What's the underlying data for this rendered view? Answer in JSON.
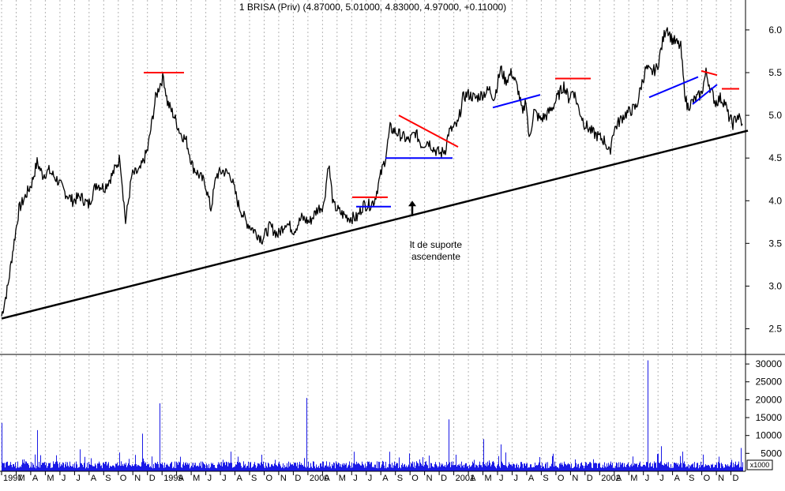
{
  "chart_data": {
    "type": "line",
    "title": "1 BRISA (Priv) (4.87000, 5.01000, 4.83000, 4.97000, +0.11000)",
    "ylim": [
      2.2,
      6.35
    ],
    "yticks": [
      "6.0",
      "5.5",
      "5.0",
      "4.5",
      "4.0",
      "3.5",
      "3.0",
      "2.5"
    ],
    "ytick_values": [
      6.0,
      5.5,
      5.0,
      4.5,
      4.0,
      3.5,
      3.0,
      2.5
    ],
    "volume": {
      "ylim": [
        0,
        32000
      ],
      "unit_label": "x1000",
      "yticks": [
        "30000",
        "25000",
        "20000",
        "15000",
        "10000",
        "5000"
      ],
      "ytick_values": [
        30000,
        25000,
        20000,
        15000,
        10000,
        5000
      ],
      "spikes": [
        [
          0,
          13500
        ],
        [
          45,
          11500
        ],
        [
          178,
          10500
        ],
        [
          200,
          19000
        ],
        [
          386,
          20500
        ],
        [
          566,
          14500
        ],
        [
          610,
          9000
        ],
        [
          632,
          7500
        ],
        [
          818,
          31000
        ],
        [
          835,
          7000
        ],
        [
          862,
          5500
        ],
        [
          936,
          6500
        ]
      ]
    },
    "month_labels": [
      "1997",
      "M",
      "A",
      "M",
      "J",
      "J",
      "A",
      "S",
      "O",
      "N",
      "D",
      "1999",
      "A",
      "M",
      "J",
      "J",
      "A",
      "S",
      "O",
      "N",
      "D",
      "2000",
      "A",
      "M",
      "J",
      "J",
      "A",
      "S",
      "O",
      "N",
      "D",
      "2001",
      "A",
      "M",
      "J",
      "J",
      "A",
      "S",
      "O",
      "N",
      "D",
      "2002",
      "A",
      "M",
      "J",
      "J",
      "A",
      "S",
      "O",
      "N",
      "D"
    ],
    "price_anchors": [
      [
        0,
        2.65
      ],
      [
        8,
        3.0
      ],
      [
        14,
        3.4
      ],
      [
        22,
        3.9
      ],
      [
        30,
        4.05
      ],
      [
        38,
        4.2
      ],
      [
        45,
        4.45
      ],
      [
        52,
        4.3
      ],
      [
        60,
        4.35
      ],
      [
        70,
        4.25
      ],
      [
        80,
        4.1
      ],
      [
        90,
        4.0
      ],
      [
        100,
        4.05
      ],
      [
        110,
        3.95
      ],
      [
        120,
        4.2
      ],
      [
        130,
        4.15
      ],
      [
        140,
        4.3
      ],
      [
        150,
        4.5
      ],
      [
        157,
        3.75
      ],
      [
        165,
        4.3
      ],
      [
        175,
        4.35
      ],
      [
        185,
        4.6
      ],
      [
        195,
        5.2
      ],
      [
        200,
        5.35
      ],
      [
        205,
        5.45
      ],
      [
        210,
        5.15
      ],
      [
        218,
        5.0
      ],
      [
        226,
        4.8
      ],
      [
        234,
        4.7
      ],
      [
        242,
        4.4
      ],
      [
        250,
        4.3
      ],
      [
        258,
        4.2
      ],
      [
        265,
        3.9
      ],
      [
        272,
        4.3
      ],
      [
        280,
        4.35
      ],
      [
        290,
        4.3
      ],
      [
        300,
        3.95
      ],
      [
        310,
        3.75
      ],
      [
        320,
        3.65
      ],
      [
        330,
        3.55
      ],
      [
        340,
        3.7
      ],
      [
        350,
        3.6
      ],
      [
        360,
        3.75
      ],
      [
        370,
        3.65
      ],
      [
        380,
        3.8
      ],
      [
        390,
        3.75
      ],
      [
        400,
        3.9
      ],
      [
        408,
        3.95
      ],
      [
        414,
        4.45
      ],
      [
        420,
        3.95
      ],
      [
        430,
        3.85
      ],
      [
        440,
        3.8
      ],
      [
        450,
        3.8
      ],
      [
        458,
        3.95
      ],
      [
        466,
        3.95
      ],
      [
        472,
        4.0
      ],
      [
        480,
        4.3
      ],
      [
        486,
        4.5
      ],
      [
        492,
        4.85
      ],
      [
        500,
        4.8
      ],
      [
        508,
        4.75
      ],
      [
        516,
        4.7
      ],
      [
        524,
        4.8
      ],
      [
        532,
        4.65
      ],
      [
        540,
        4.7
      ],
      [
        548,
        4.6
      ],
      [
        556,
        4.55
      ],
      [
        562,
        4.6
      ],
      [
        566,
        4.8
      ],
      [
        572,
        4.85
      ],
      [
        578,
        4.9
      ],
      [
        584,
        5.2
      ],
      [
        590,
        5.25
      ],
      [
        600,
        5.2
      ],
      [
        610,
        5.25
      ],
      [
        618,
        5.3
      ],
      [
        624,
        5.2
      ],
      [
        632,
        5.55
      ],
      [
        638,
        5.4
      ],
      [
        646,
        5.5
      ],
      [
        654,
        5.3
      ],
      [
        660,
        5.0
      ],
      [
        664,
        5.2
      ],
      [
        668,
        4.7
      ],
      [
        674,
        5.05
      ],
      [
        682,
        4.95
      ],
      [
        690,
        5.0
      ],
      [
        698,
        5.1
      ],
      [
        706,
        5.25
      ],
      [
        712,
        5.35
      ],
      [
        718,
        5.2
      ],
      [
        724,
        5.3
      ],
      [
        730,
        5.1
      ],
      [
        738,
        4.9
      ],
      [
        748,
        4.8
      ],
      [
        756,
        4.75
      ],
      [
        764,
        4.7
      ],
      [
        770,
        4.55
      ],
      [
        774,
        4.8
      ],
      [
        780,
        4.9
      ],
      [
        788,
        5.0
      ],
      [
        796,
        5.05
      ],
      [
        804,
        5.1
      ],
      [
        810,
        5.35
      ],
      [
        816,
        5.55
      ],
      [
        822,
        5.5
      ],
      [
        830,
        5.55
      ],
      [
        838,
        5.9
      ],
      [
        842,
        6.05
      ],
      [
        848,
        5.9
      ],
      [
        854,
        5.85
      ],
      [
        860,
        5.8
      ],
      [
        864,
        5.35
      ],
      [
        868,
        5.1
      ],
      [
        874,
        5.15
      ],
      [
        880,
        5.2
      ],
      [
        886,
        5.25
      ],
      [
        892,
        5.5
      ],
      [
        898,
        5.3
      ],
      [
        904,
        5.15
      ],
      [
        910,
        5.2
      ],
      [
        916,
        5.15
      ],
      [
        920,
        5.0
      ],
      [
        926,
        4.9
      ],
      [
        932,
        5.0
      ],
      [
        938,
        4.9
      ]
    ],
    "trend_lines": [
      {
        "color": "#000000",
        "from": [
          0,
          2.62
        ],
        "to": [
          945,
          4.82
        ],
        "width": 2.5
      },
      {
        "color": "#ff0000",
        "from": [
          180,
          5.5
        ],
        "to": [
          231,
          5.5
        ],
        "width": 2
      },
      {
        "color": "#ff0000",
        "from": [
          444,
          4.04
        ],
        "to": [
          489,
          4.04
        ],
        "width": 2
      },
      {
        "color": "#0000ff",
        "from": [
          449,
          3.93
        ],
        "to": [
          493,
          3.93
        ],
        "width": 2
      },
      {
        "color": "#ff0000",
        "from": [
          503,
          5.0
        ],
        "to": [
          578,
          4.63
        ],
        "width": 2
      },
      {
        "color": "#0000ff",
        "from": [
          486,
          4.5
        ],
        "to": [
          571,
          4.5
        ],
        "width": 2
      },
      {
        "color": "#0000ff",
        "from": [
          622,
          5.09
        ],
        "to": [
          682,
          5.24
        ],
        "width": 2
      },
      {
        "color": "#ff0000",
        "from": [
          701,
          5.43
        ],
        "to": [
          746,
          5.43
        ],
        "width": 2
      },
      {
        "color": "#0000ff",
        "from": [
          820,
          5.21
        ],
        "to": [
          882,
          5.45
        ],
        "width": 2
      },
      {
        "color": "#ff0000",
        "from": [
          886,
          5.52
        ],
        "to": [
          906,
          5.47
        ],
        "width": 2
      },
      {
        "color": "#0000ff",
        "from": [
          875,
          5.13
        ],
        "to": [
          906,
          5.36
        ],
        "width": 2
      },
      {
        "color": "#ff0000",
        "from": [
          912,
          5.31
        ],
        "to": [
          934,
          5.31
        ],
        "width": 2
      }
    ],
    "annotation": {
      "line1": "lt de suporte",
      "line2": "ascendente",
      "arrow_x": 520,
      "arrow_from_price": 3.82,
      "arrow_to_price": 4.0
    }
  }
}
